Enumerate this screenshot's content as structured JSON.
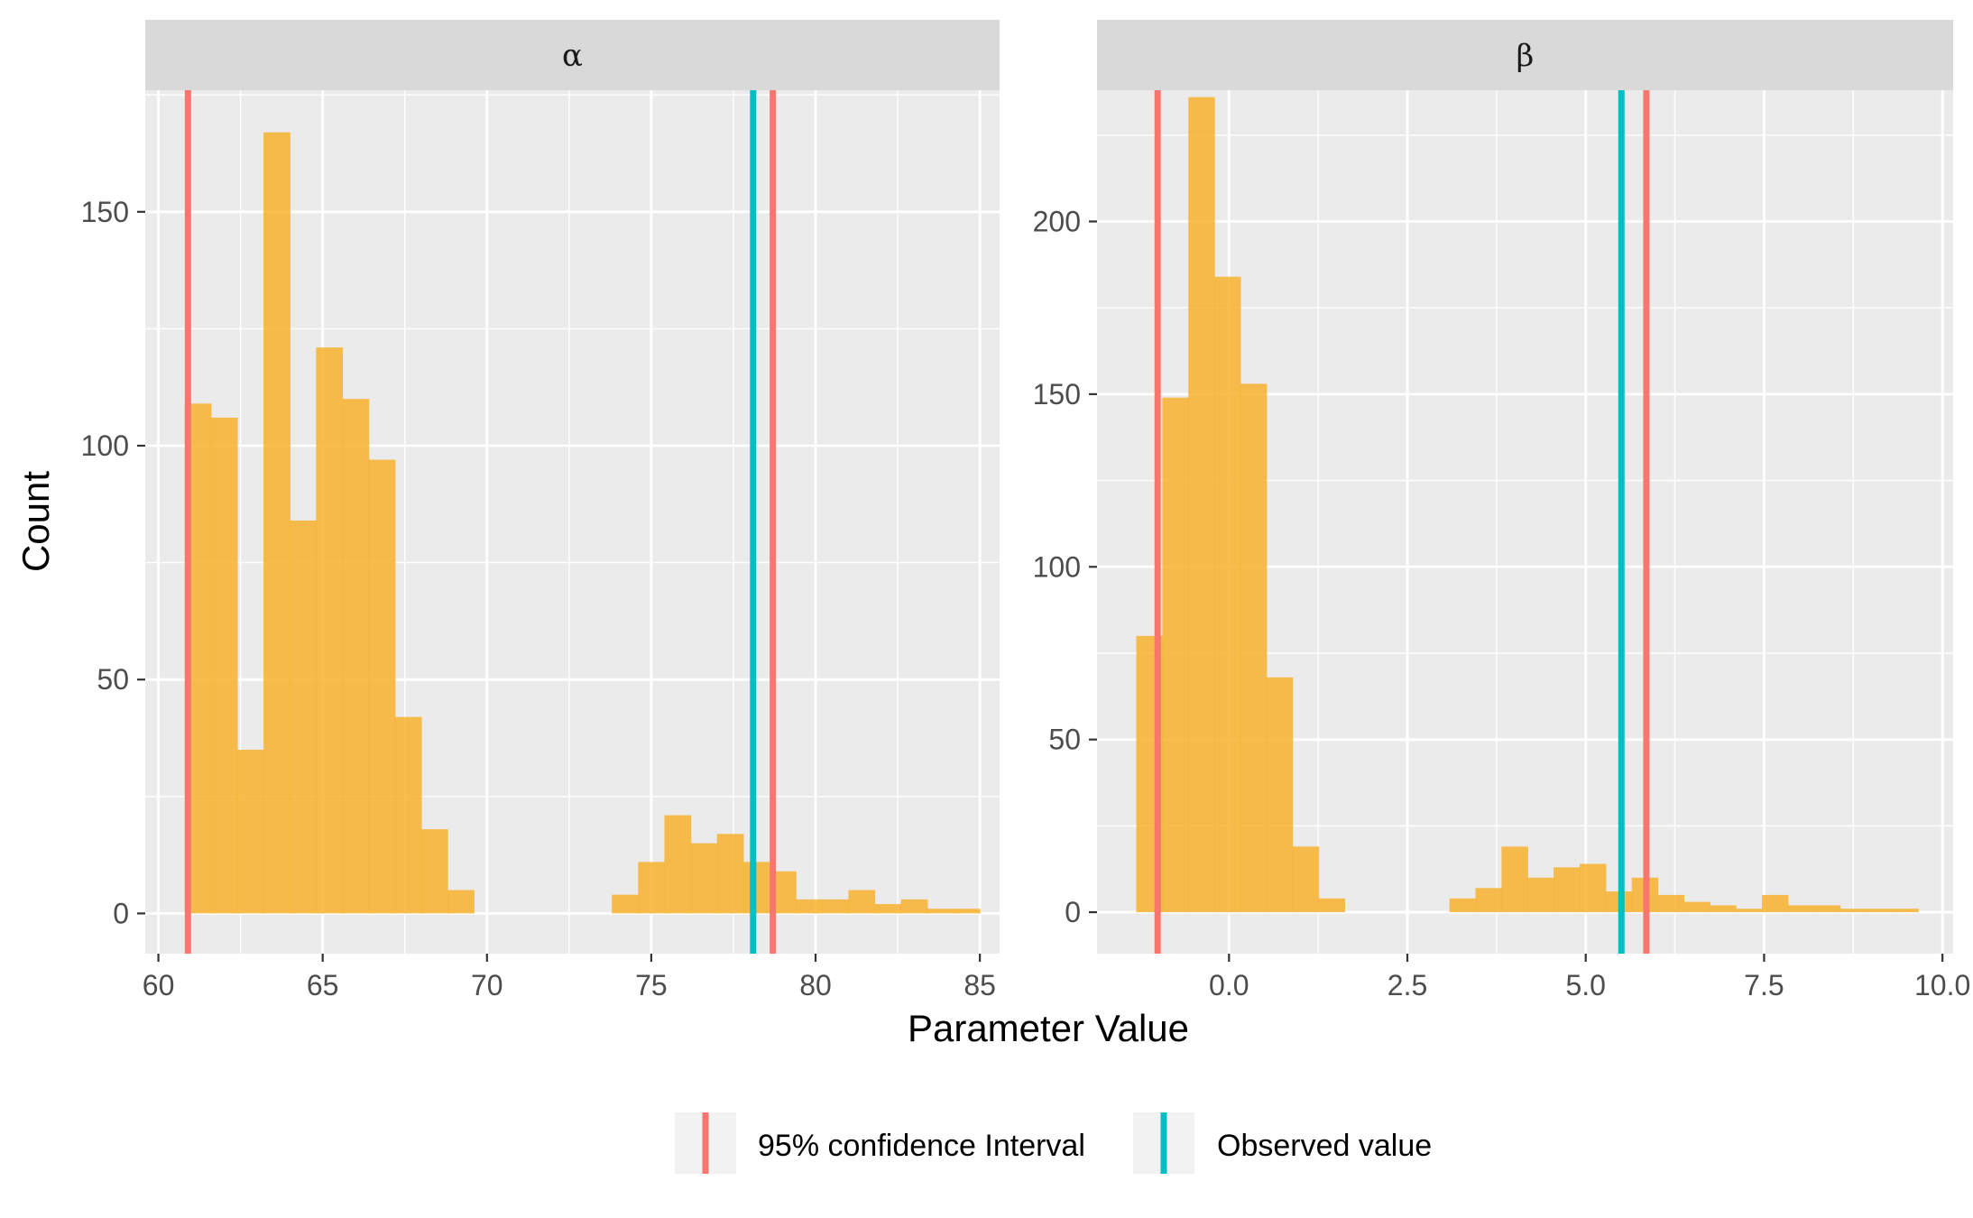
{
  "colors": {
    "bar": "#F8B22E",
    "confidence_interval": "#F8766D",
    "observed": "#00BFC4",
    "panel_bg": "#EBEBEB",
    "strip_bg": "#D9D9D9",
    "grid": "#FFFFFF",
    "tick": "#333333"
  },
  "chart_data": {
    "type": "bar",
    "xlabel": "Parameter Value",
    "ylabel": "Count",
    "legend": {
      "position": "bottom",
      "entries": [
        {
          "key": "ci",
          "label": "95% confidence Interval"
        },
        {
          "key": "observed",
          "label": "Observed value"
        }
      ]
    },
    "grid": true,
    "panels": [
      {
        "strip": "α",
        "xlim": [
          59.6,
          85.6
        ],
        "ylim": [
          -8.6,
          176
        ],
        "x_ticks": [
          60,
          65,
          70,
          75,
          80,
          85
        ],
        "x_tick_labels": [
          "60",
          "65",
          "70",
          "75",
          "80",
          "85"
        ],
        "y_ticks": [
          0,
          50,
          100,
          150
        ],
        "y_tick_labels": [
          "0",
          "50",
          "100",
          "150"
        ],
        "bins": [
          {
            "x0": 60.8,
            "x1": 61.6,
            "count": 109
          },
          {
            "x0": 61.6,
            "x1": 62.4,
            "count": 106
          },
          {
            "x0": 62.4,
            "x1": 63.2,
            "count": 35
          },
          {
            "x0": 63.2,
            "x1": 64.0,
            "count": 167
          },
          {
            "x0": 64.0,
            "x1": 64.8,
            "count": 84
          },
          {
            "x0": 64.8,
            "x1": 65.6,
            "count": 121
          },
          {
            "x0": 65.6,
            "x1": 66.4,
            "count": 110
          },
          {
            "x0": 66.4,
            "x1": 67.2,
            "count": 97
          },
          {
            "x0": 67.2,
            "x1": 68.0,
            "count": 42
          },
          {
            "x0": 68.0,
            "x1": 68.8,
            "count": 18
          },
          {
            "x0": 68.8,
            "x1": 69.6,
            "count": 5
          },
          {
            "x0": 73.8,
            "x1": 74.6,
            "count": 4
          },
          {
            "x0": 74.6,
            "x1": 75.4,
            "count": 11
          },
          {
            "x0": 75.4,
            "x1": 76.2,
            "count": 21
          },
          {
            "x0": 76.2,
            "x1": 77.0,
            "count": 15
          },
          {
            "x0": 77.0,
            "x1": 77.8,
            "count": 17
          },
          {
            "x0": 77.8,
            "x1": 78.6,
            "count": 11
          },
          {
            "x0": 78.6,
            "x1": 79.4,
            "count": 9
          },
          {
            "x0": 79.4,
            "x1": 80.2,
            "count": 3
          },
          {
            "x0": 80.2,
            "x1": 81.0,
            "count": 3
          },
          {
            "x0": 81.0,
            "x1": 81.8,
            "count": 5
          },
          {
            "x0": 81.8,
            "x1": 82.6,
            "count": 2
          },
          {
            "x0": 82.6,
            "x1": 83.4,
            "count": 3
          },
          {
            "x0": 83.4,
            "x1": 84.2,
            "count": 1
          },
          {
            "x0": 84.2,
            "x1": 85.0,
            "count": 1
          }
        ],
        "ci": [
          60.9,
          78.7
        ],
        "observed": 78.1
      },
      {
        "strip": "β",
        "xlim": [
          -1.85,
          10.15
        ],
        "ylim": [
          -12,
          238
        ],
        "x_ticks": [
          0,
          2.5,
          5,
          7.5,
          10
        ],
        "x_tick_labels": [
          "0.0",
          "2.5",
          "5.0",
          "7.5",
          "10.0"
        ],
        "y_ticks": [
          0,
          50,
          100,
          150,
          200
        ],
        "y_tick_labels": [
          "0",
          "50",
          "100",
          "150",
          "200"
        ],
        "bins": [
          {
            "x0": -1.3,
            "x1": -0.935,
            "count": 80
          },
          {
            "x0": -0.935,
            "x1": -0.57,
            "count": 149
          },
          {
            "x0": -0.57,
            "x1": -0.205,
            "count": 236
          },
          {
            "x0": -0.205,
            "x1": 0.16,
            "count": 184
          },
          {
            "x0": 0.16,
            "x1": 0.525,
            "count": 153
          },
          {
            "x0": 0.525,
            "x1": 0.89,
            "count": 68
          },
          {
            "x0": 0.89,
            "x1": 1.255,
            "count": 19
          },
          {
            "x0": 1.255,
            "x1": 1.62,
            "count": 4
          },
          {
            "x0": 3.09,
            "x1": 3.455,
            "count": 4
          },
          {
            "x0": 3.455,
            "x1": 3.82,
            "count": 7
          },
          {
            "x0": 3.82,
            "x1": 4.185,
            "count": 19
          },
          {
            "x0": 4.185,
            "x1": 4.55,
            "count": 10
          },
          {
            "x0": 4.55,
            "x1": 4.915,
            "count": 13
          },
          {
            "x0": 4.915,
            "x1": 5.28,
            "count": 14
          },
          {
            "x0": 5.28,
            "x1": 5.645,
            "count": 6
          },
          {
            "x0": 5.645,
            "x1": 6.01,
            "count": 10
          },
          {
            "x0": 6.01,
            "x1": 6.375,
            "count": 5
          },
          {
            "x0": 6.375,
            "x1": 6.74,
            "count": 3
          },
          {
            "x0": 6.74,
            "x1": 7.105,
            "count": 2
          },
          {
            "x0": 7.105,
            "x1": 7.47,
            "count": 1
          },
          {
            "x0": 7.47,
            "x1": 7.835,
            "count": 5
          },
          {
            "x0": 7.835,
            "x1": 8.2,
            "count": 2
          },
          {
            "x0": 8.2,
            "x1": 8.565,
            "count": 2
          },
          {
            "x0": 8.565,
            "x1": 8.93,
            "count": 1
          },
          {
            "x0": 8.93,
            "x1": 9.295,
            "count": 1
          },
          {
            "x0": 9.295,
            "x1": 9.66,
            "count": 1
          }
        ],
        "ci": [
          -1.0,
          5.85
        ],
        "observed": 5.5
      }
    ]
  }
}
